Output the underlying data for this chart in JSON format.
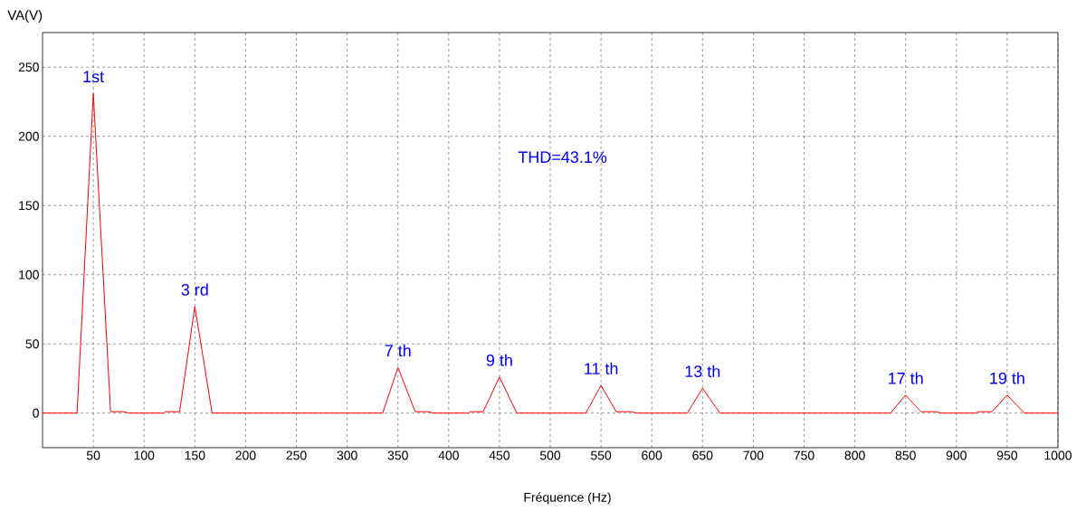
{
  "chart_data": {
    "type": "line",
    "xlabel": "Fréquence (Hz)",
    "ylabel": "VA(V)",
    "x": [
      0,
      34,
      50,
      67,
      80,
      85,
      120,
      121,
      135,
      150,
      167,
      335,
      350,
      367,
      380,
      385,
      420,
      421,
      434,
      450,
      467,
      535,
      550,
      565,
      580,
      585,
      635,
      650,
      667,
      835,
      850,
      865,
      880,
      885,
      920,
      921,
      935,
      950,
      967,
      1000
    ],
    "series": [
      {
        "color": "#ff0000",
        "values": [
          0,
          0,
          231,
          1,
          1,
          0,
          0,
          1,
          1,
          77,
          0,
          0,
          33,
          1,
          1,
          0,
          0,
          1,
          1,
          26,
          0,
          0,
          20,
          1,
          1,
          0,
          0,
          18,
          0,
          0,
          13,
          1,
          1,
          0,
          0,
          1,
          1,
          13,
          0,
          0
        ]
      }
    ],
    "xlim": [
      0,
      1000
    ],
    "ylim": [
      -25,
      275
    ],
    "xticks": [
      50,
      100,
      150,
      200,
      250,
      300,
      350,
      400,
      450,
      500,
      550,
      600,
      650,
      700,
      750,
      800,
      850,
      900,
      950,
      1000
    ],
    "yticks": [
      0,
      50,
      100,
      150,
      200,
      250
    ],
    "grid": true,
    "marker": "none",
    "line_style": "solid",
    "annotations": [
      {
        "text": "1st",
        "x": 50,
        "y": 231
      },
      {
        "text": "3 rd",
        "x": 150,
        "y": 77
      },
      {
        "text": "7 th",
        "x": 350,
        "y": 33
      },
      {
        "text": "9 th",
        "x": 450,
        "y": 26
      },
      {
        "text": "11 th",
        "x": 550,
        "y": 20
      },
      {
        "text": "13 th",
        "x": 650,
        "y": 18
      },
      {
        "text": "17 th",
        "x": 850,
        "y": 13
      },
      {
        "text": "19 th",
        "x": 950,
        "y": 13
      },
      "THD=43.1%"
    ]
  }
}
